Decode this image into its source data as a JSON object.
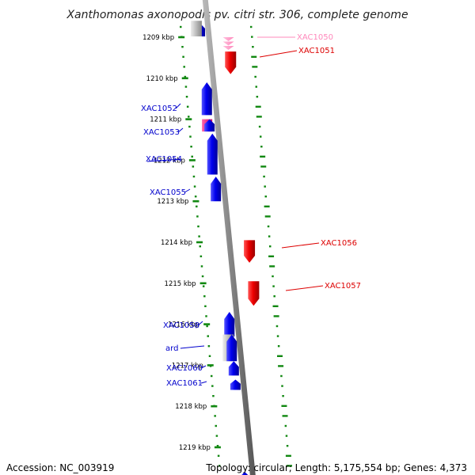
{
  "title": "Xanthomonas axonopodis pv. citri str. 306, complete genome",
  "footer": {
    "accession": "Accession: NC_003919",
    "topology": "Topology: circular; Length: 5,175,554 bp; Genes: 4,373"
  },
  "colors": {
    "forward_gene": "#0000ee",
    "reverse_gene": "#ee0000",
    "pseudo_gene": "#ff99cc",
    "misc_gene": "#ff3399",
    "rna_gene": "#bbbbbb",
    "backbone": "#888888",
    "cds_ticks": "#118811"
  },
  "ticks": [
    {
      "label": "1209 kbp",
      "kbp": 1209
    },
    {
      "label": "1210 kbp",
      "kbp": 1210
    },
    {
      "label": "1211 kbp",
      "kbp": 1211
    },
    {
      "label": "1212 kbp",
      "kbp": 1212
    },
    {
      "label": "1213 kbp",
      "kbp": 1213
    },
    {
      "label": "1214 kbp",
      "kbp": 1214
    },
    {
      "label": "1215 kbp",
      "kbp": 1215
    },
    {
      "label": "1216 kbp",
      "kbp": 1216
    },
    {
      "label": "1217 kbp",
      "kbp": 1217
    },
    {
      "label": "1218 kbp",
      "kbp": 1218
    },
    {
      "label": "1219 kbp",
      "kbp": 1219
    }
  ],
  "genes": [
    {
      "label": "",
      "strand": "+",
      "type": "forward",
      "start_kbp": 1208.66,
      "end_kbp": 1208.98
    },
    {
      "label": "",
      "strand": "+",
      "type": "rna",
      "start_kbp": 1208.6,
      "end_kbp": 1208.98
    },
    {
      "label": "XAC1050",
      "strand": "-",
      "type": "pseudo",
      "start_kbp": 1209.0,
      "end_kbp": 1209.2
    },
    {
      "label": "XAC1051",
      "strand": "-",
      "type": "reverse",
      "start_kbp": 1209.35,
      "end_kbp": 1209.9
    },
    {
      "label": "XAC1052",
      "strand": "+",
      "type": "forward",
      "start_kbp": 1210.1,
      "end_kbp": 1210.9
    },
    {
      "label": "XAC1053",
      "strand": "+",
      "type": "misc",
      "start_kbp": 1211.0,
      "end_kbp": 1211.3
    },
    {
      "label": "",
      "strand": "+",
      "type": "forward",
      "start_kbp": 1211.0,
      "end_kbp": 1211.3
    },
    {
      "label": "XAC1054",
      "strand": "+",
      "type": "forward",
      "start_kbp": 1211.35,
      "end_kbp": 1212.35
    },
    {
      "label": "XAC1055",
      "strand": "+",
      "type": "forward",
      "start_kbp": 1212.4,
      "end_kbp": 1213.0
    },
    {
      "label": "XAC1056",
      "strand": "-",
      "type": "reverse",
      "start_kbp": 1213.95,
      "end_kbp": 1214.5
    },
    {
      "label": "XAC1057",
      "strand": "-",
      "type": "reverse",
      "start_kbp": 1214.95,
      "end_kbp": 1215.55
    },
    {
      "label": "XAC1058",
      "strand": "+",
      "type": "forward",
      "start_kbp": 1215.7,
      "end_kbp": 1216.3
    },
    {
      "label": "ard",
      "strand": "+",
      "type": "rna",
      "start_kbp": 1216.25,
      "end_kbp": 1216.9
    },
    {
      "label": "",
      "strand": "+",
      "type": "forward",
      "start_kbp": 1216.25,
      "end_kbp": 1216.9
    },
    {
      "label": "XAC1060",
      "strand": "+",
      "type": "forward",
      "start_kbp": 1216.9,
      "end_kbp": 1217.25
    },
    {
      "label": "XAC1061",
      "strand": "+",
      "type": "forward",
      "start_kbp": 1217.35,
      "end_kbp": 1217.6
    },
    {
      "label": "",
      "strand": "+",
      "type": "forward",
      "start_kbp": 1219.6,
      "end_kbp": 1219.9
    }
  ]
}
